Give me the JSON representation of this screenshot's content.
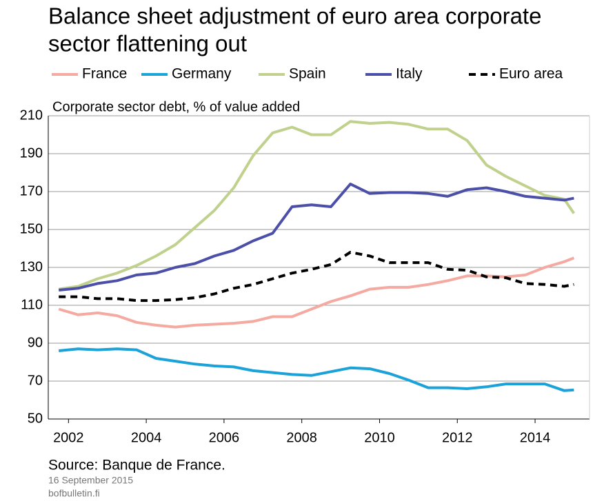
{
  "chart_data": {
    "type": "line",
    "title": [
      "Balance sheet adjustment of euro area corporate",
      "sector flattening out"
    ],
    "y_label": "Corporate sector debt, % of value added",
    "source": "Source: Banque de France.",
    "date": "16 September 2015",
    "site": "bofbulletin.fi",
    "x": [
      2001.75,
      2002.25,
      2002.75,
      2003.25,
      2003.75,
      2004.25,
      2004.75,
      2005.25,
      2005.75,
      2006.25,
      2006.75,
      2007.25,
      2007.75,
      2008.25,
      2008.75,
      2009.25,
      2009.75,
      2010.25,
      2010.75,
      2011.25,
      2011.75,
      2012.25,
      2012.75,
      2013.25,
      2013.75,
      2014.25,
      2014.75,
      2015.0
    ],
    "series": [
      {
        "name": "France",
        "color": "#f4a9a1",
        "dash": false,
        "values": [
          108,
          105,
          106,
          104.5,
          101,
          99.5,
          98.5,
          99.5,
          100,
          100.5,
          101.5,
          104,
          104,
          108,
          112,
          115,
          118.5,
          119.5,
          119.5,
          121,
          123,
          125.5,
          125.5,
          125,
          126,
          130,
          133,
          135
        ]
      },
      {
        "name": "Germany",
        "color": "#1aa2d9",
        "dash": false,
        "values": [
          86,
          87,
          86.5,
          87,
          86.5,
          82,
          80.5,
          79,
          78,
          77.5,
          75.5,
          74.5,
          73.5,
          73,
          75,
          77,
          76.5,
          74,
          70.5,
          66.5,
          66.5,
          66,
          67,
          68.5,
          68.5,
          68.5,
          65,
          65.3
        ]
      },
      {
        "name": "Spain",
        "color": "#bfd18c",
        "dash": false,
        "values": [
          118.5,
          120,
          124,
          127,
          131,
          136,
          142,
          151,
          160,
          172,
          189,
          201,
          204,
          200,
          200,
          207,
          206,
          206.5,
          205.5,
          203,
          203,
          197,
          184,
          178,
          173,
          168,
          166,
          158.5
        ]
      },
      {
        "name": "Italy",
        "color": "#4b4fa8",
        "dash": false,
        "values": [
          118,
          119,
          121.5,
          123,
          126,
          127,
          130,
          132,
          136,
          139,
          144,
          148,
          162,
          163,
          162,
          174,
          169,
          169.5,
          169.5,
          169,
          167.5,
          171,
          172,
          170,
          167.5,
          166.5,
          165.5,
          166.5
        ]
      },
      {
        "name": "Euro area",
        "color": "#000000",
        "dash": true,
        "values": [
          114.5,
          114.5,
          113.5,
          113.5,
          112.5,
          112.5,
          113,
          114,
          116,
          119,
          121,
          124,
          127,
          129,
          131.5,
          138,
          136,
          132.5,
          132.5,
          132.5,
          129,
          128.5,
          125,
          124.5,
          121.5,
          121,
          120,
          121
        ]
      }
    ],
    "xlim": [
      2001.48,
      2015.4
    ],
    "xticks": [
      2002,
      2004,
      2006,
      2008,
      2010,
      2012,
      2014
    ],
    "ylim": [
      50,
      210
    ],
    "yticks": [
      50,
      70,
      90,
      110,
      130,
      150,
      170,
      190,
      210
    ],
    "grid": true
  }
}
